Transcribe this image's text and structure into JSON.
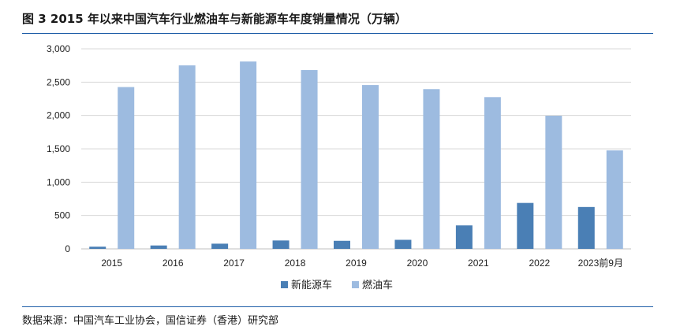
{
  "title": "图 3  2015 年以来中国汽车行业燃油车与新能源车年度销量情况（万辆）",
  "source": "数据来源：中国汽车工业协会，国信证券（香港）研究部",
  "chart_data": {
    "type": "bar",
    "title": "图 3  2015 年以来中国汽车行业燃油车与新能源车年度销量情况（万辆）",
    "xlabel": "",
    "ylabel": "",
    "ylim": [
      0,
      3000
    ],
    "yticks": [
      0,
      500,
      1000,
      1500,
      2000,
      2500,
      3000
    ],
    "ytick_labels": [
      "0",
      "500",
      "1,000",
      "1,500",
      "2,000",
      "2,500",
      "3,000"
    ],
    "grid": true,
    "legend_position": "bottom-center",
    "categories": [
      "2015",
      "2016",
      "2017",
      "2018",
      "2019",
      "2020",
      "2021",
      "2022",
      "2023前9月"
    ],
    "series": [
      {
        "name": "新能源车",
        "color": "#4a7fb5",
        "values": [
          33,
          51,
          78,
          126,
          121,
          136,
          352,
          689,
          628
        ]
      },
      {
        "name": "燃油车",
        "color": "#9dbbe0",
        "values": [
          2427,
          2752,
          2810,
          2682,
          2456,
          2395,
          2276,
          1997,
          1478
        ]
      }
    ]
  }
}
